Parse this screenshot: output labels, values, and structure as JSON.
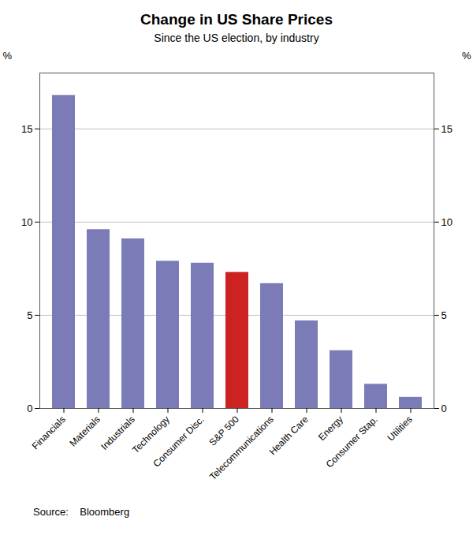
{
  "chart_data": {
    "type": "bar",
    "title": "Change in US Share Prices",
    "subtitle": "Since the US election, by industry",
    "source": "Source:    Bloomberg",
    "y_label": "%",
    "categories": [
      "Financials",
      "Materials",
      "Industrials",
      "Technology",
      "Consumer Disc.",
      "S&P 500",
      "Telecommunications",
      "Health Care",
      "Energy",
      "Consumer Stap.",
      "Utilities"
    ],
    "values": [
      16.8,
      9.6,
      9.1,
      7.9,
      7.8,
      7.3,
      6.7,
      4.7,
      3.1,
      1.3,
      0.6
    ],
    "colors": [
      "#7b7bb8",
      "#7b7bb8",
      "#7b7bb8",
      "#7b7bb8",
      "#7b7bb8",
      "#cc2222",
      "#7b7bb8",
      "#7b7bb8",
      "#7b7bb8",
      "#7b7bb8",
      "#7b7bb8"
    ],
    "ylim": [
      0,
      18
    ],
    "yticks": [
      0,
      5,
      10,
      15
    ],
    "grid": true
  }
}
